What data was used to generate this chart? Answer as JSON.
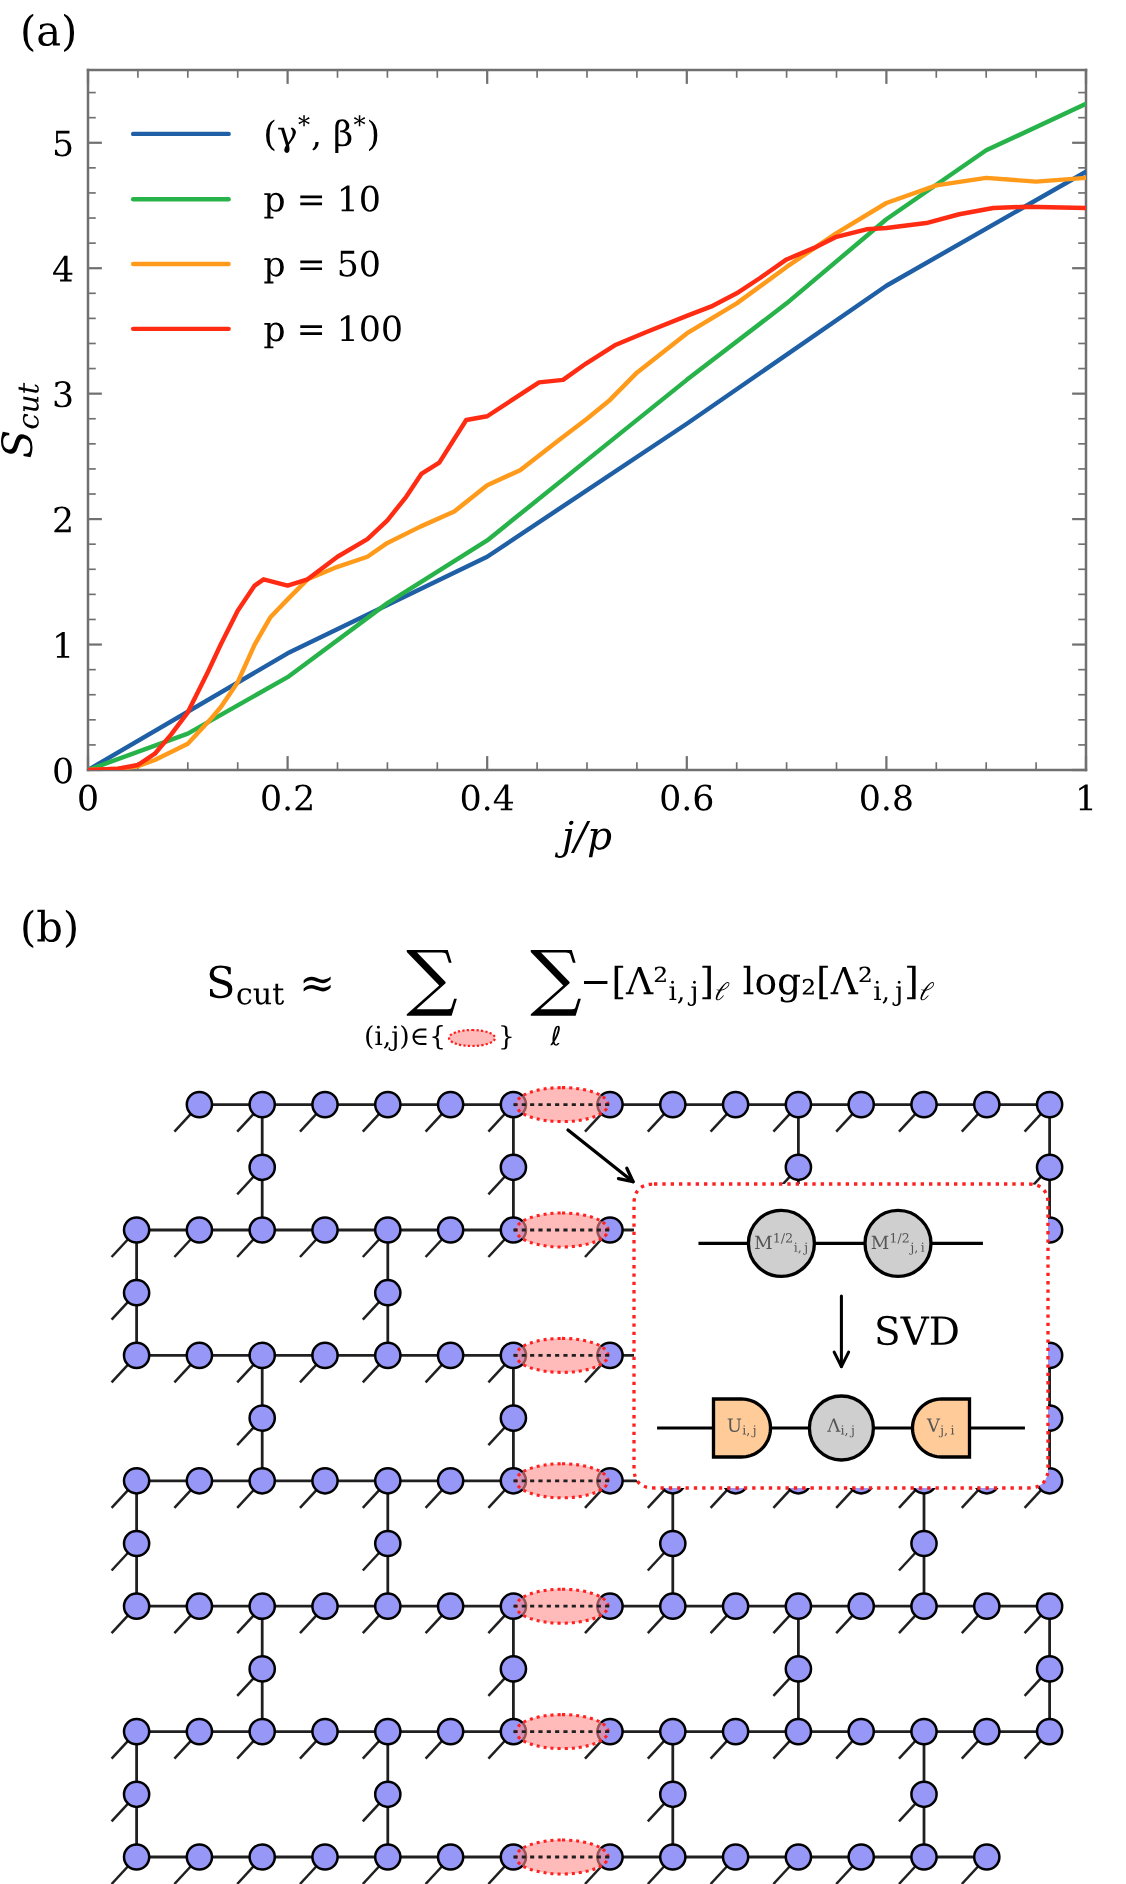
{
  "chart_data": [
    {
      "type": "line",
      "title": "(a)",
      "xlabel": "j/p",
      "ylabel": "S$_{cut}$",
      "legend": "top left",
      "xlim": [
        0,
        1
      ],
      "ylim": [
        0,
        5.58
      ],
      "xticks": [
        0,
        {
          "value": 0.05,
          "label": null
        },
        {
          "value": 0.1,
          "label": null
        },
        {
          "value": 0.15,
          "label": null
        },
        0.2,
        {
          "value": 0.25,
          "label": null
        },
        {
          "value": 0.3,
          "label": null
        },
        {
          "value": 0.35,
          "label": null
        },
        0.4,
        {
          "value": 0.45,
          "label": null
        },
        {
          "value": 0.5,
          "label": null
        },
        {
          "value": 0.55,
          "label": null
        },
        0.6,
        {
          "value": 0.65,
          "label": null
        },
        {
          "value": 0.7,
          "label": null
        },
        {
          "value": 0.75,
          "label": null
        },
        0.8,
        {
          "value": 0.85,
          "label": null
        },
        {
          "value": 0.9,
          "label": null
        },
        {
          "value": 0.95,
          "label": null
        },
        1
      ],
      "yticks": [
        0,
        {
          "value": 0.2,
          "label": null
        },
        {
          "value": 0.4,
          "label": null
        },
        {
          "value": 0.6,
          "label": null
        },
        {
          "value": 0.8,
          "label": null
        },
        1,
        {
          "value": 1.2,
          "label": null
        },
        {
          "value": 1.4,
          "label": null
        },
        {
          "value": 1.6,
          "label": null
        },
        {
          "value": 1.8,
          "label": null
        },
        2,
        {
          "value": 2.2,
          "label": null
        },
        {
          "value": 2.4,
          "label": null
        },
        {
          "value": 2.6,
          "label": null
        },
        {
          "value": 2.8,
          "label": null
        },
        3,
        {
          "value": 3.2,
          "label": null
        },
        {
          "value": 3.4,
          "label": null
        },
        {
          "value": 3.6,
          "label": null
        },
        {
          "value": 3.8,
          "label": null
        },
        4,
        {
          "value": 4.2,
          "label": null
        },
        {
          "value": 4.4,
          "label": null
        },
        {
          "value": 4.6,
          "label": null
        },
        {
          "value": 4.8,
          "label": null
        },
        5,
        {
          "value": 5.2,
          "label": null
        },
        {
          "value": 5.4,
          "label": null
        }
      ],
      "series": [
        {
          "name": "(γ$^{*}$, β$^{*}$)",
          "color": "#1f5fa5",
          "x": [
            0,
            0.2,
            0.4,
            0.6,
            0.8,
            1
          ],
          "values": [
            0,
            0.93,
            1.7,
            2.76,
            3.86,
            4.77
          ]
        },
        {
          "name": "p = 10",
          "color": "#27b34a",
          "x": [
            0,
            0.1,
            0.2,
            0.3,
            0.4,
            0.5,
            0.6,
            0.7,
            0.8,
            0.9,
            1
          ],
          "values": [
            0,
            0.29,
            0.74,
            1.33,
            1.83,
            2.47,
            3.11,
            3.72,
            4.39,
            4.94,
            5.31
          ]
        },
        {
          "name": "p = 50",
          "color": "#ff9a1a",
          "x": [
            0,
            0.03,
            0.05,
            0.067,
            0.1,
            0.12,
            0.133,
            0.15,
            0.167,
            0.183,
            0.2,
            0.22,
            0.25,
            0.28,
            0.3,
            0.333,
            0.367,
            0.4,
            0.433,
            0.472,
            0.5,
            0.523,
            0.549,
            0.6,
            0.65,
            0.7,
            0.75,
            0.8,
            0.85,
            0.9,
            0.95,
            1
          ],
          "values": [
            0,
            0.01,
            0.03,
            0.08,
            0.21,
            0.38,
            0.5,
            0.7,
            1.0,
            1.22,
            1.36,
            1.52,
            1.62,
            1.7,
            1.81,
            1.94,
            2.06,
            2.27,
            2.39,
            2.63,
            2.8,
            2.95,
            3.16,
            3.48,
            3.72,
            4.01,
            4.28,
            4.52,
            4.66,
            4.72,
            4.69,
            4.72
          ]
        },
        {
          "name": "p = 100",
          "color": "#ff2b12",
          "x": [
            0,
            0.03,
            0.05,
            0.067,
            0.083,
            0.1,
            0.12,
            0.133,
            0.15,
            0.167,
            0.176,
            0.2,
            0.22,
            0.25,
            0.28,
            0.3,
            0.319,
            0.334,
            0.352,
            0.379,
            0.4,
            0.425,
            0.452,
            0.476,
            0.499,
            0.529,
            0.559,
            0.6,
            0.626,
            0.65,
            0.673,
            0.7,
            0.727,
            0.75,
            0.78,
            0.8,
            0.84,
            0.873,
            0.907,
            0.94,
            1
          ],
          "values": [
            0,
            0.01,
            0.04,
            0.13,
            0.28,
            0.46,
            0.78,
            1.0,
            1.27,
            1.47,
            1.52,
            1.47,
            1.52,
            1.7,
            1.84,
            1.99,
            2.18,
            2.36,
            2.45,
            2.79,
            2.82,
            2.95,
            3.09,
            3.11,
            3.24,
            3.39,
            3.49,
            3.62,
            3.7,
            3.8,
            3.92,
            4.07,
            4.16,
            4.25,
            4.31,
            4.32,
            4.36,
            4.43,
            4.48,
            4.49,
            4.48
          ]
        }
      ]
    },
    {
      "type": "other",
      "title": "(b)",
      "annotations": [
        "S$_{cut}$ ≈",
        "∑",
        "(i,j)∈{",
        "}",
        "∑",
        "ℓ",
        "−[Λ²$_{i,j}$]$_{ℓ}$ log₂[Λ²$_{i,j}$]$_{ℓ}$",
        "M$^{1/2}$$_{i,j}$",
        "M$^{1/2}$$_{j,i}$",
        "SVD",
        "U$_{i,j}$",
        "Λ$_{i,j}$",
        "V$_{j,i}$"
      ]
    }
  ]
}
